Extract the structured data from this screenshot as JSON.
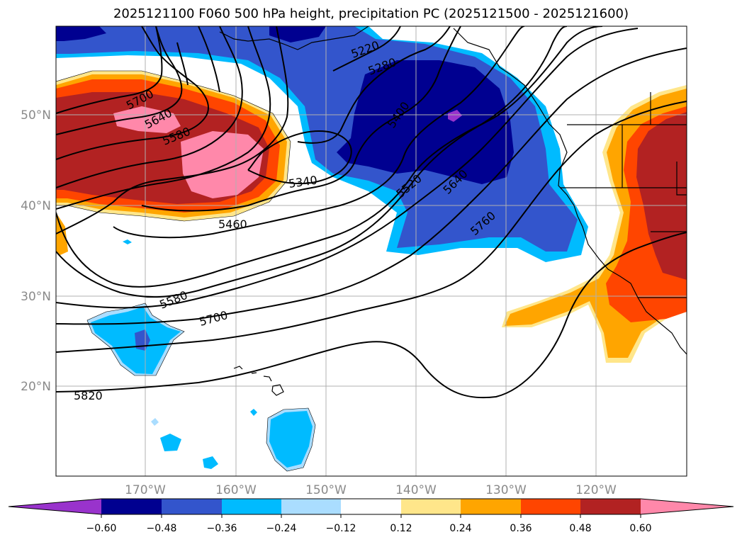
{
  "title": "2025121100 F060 500 hPa height, precipitation PC (2025121500 - 2025121600)",
  "map": {
    "lat_labels": [
      "50°N",
      "40°N",
      "30°N",
      "20°N"
    ],
    "lon_labels": [
      "170°W",
      "160°W",
      "150°W",
      "140°W",
      "130°W",
      "120°W"
    ],
    "contour_labels": [
      "5220",
      "5280",
      "5400",
      "5700",
      "5640",
      "5580",
      "5340",
      "5460",
      "5520",
      "5640",
      "5760",
      "5580",
      "5700",
      "5820"
    ]
  },
  "colorbar": {
    "ticks": [
      "−0.60",
      "−0.48",
      "−0.36",
      "−0.24",
      "−0.12",
      "0.12",
      "0.24",
      "0.36",
      "0.48",
      "0.60"
    ],
    "colors": [
      "#9933cc",
      "#000090",
      "#3355cc",
      "#00bbff",
      "#aaddff",
      "#ffffff",
      "#ffe68a",
      "#ffa500",
      "#ff4500",
      "#b22222",
      "#ff88aa"
    ]
  }
}
